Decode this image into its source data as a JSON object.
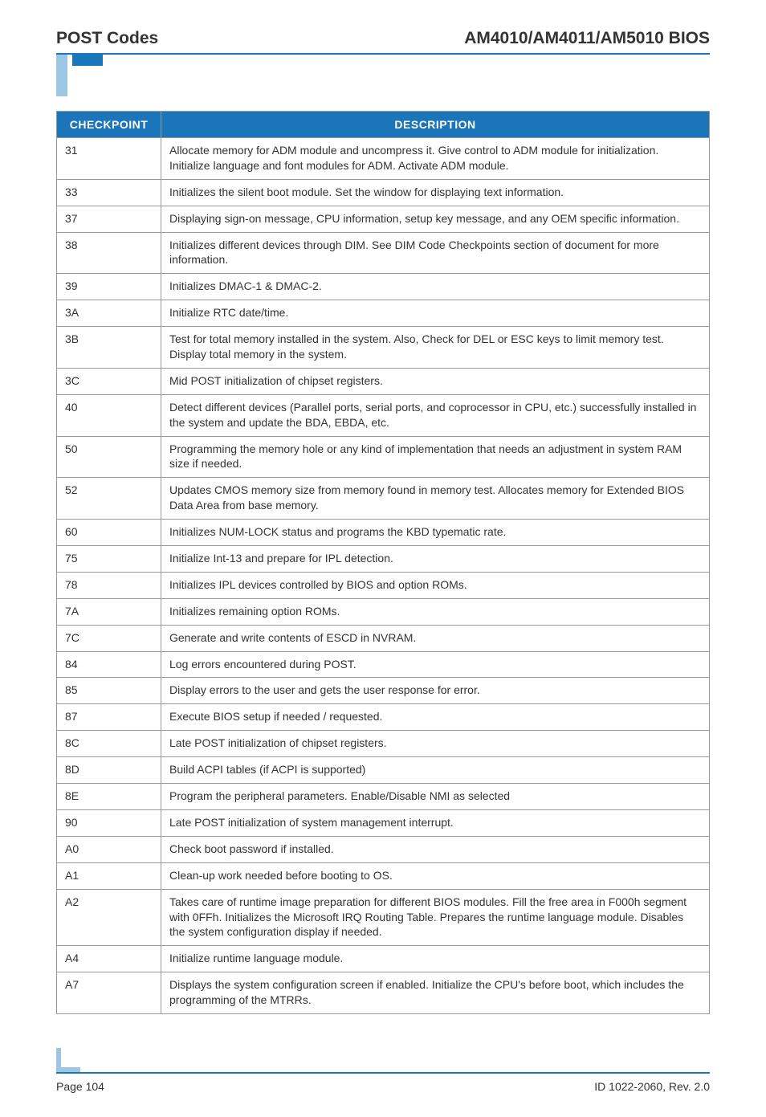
{
  "header": {
    "left": "POST Codes",
    "right": "AM4010/AM4011/AM5010 BIOS"
  },
  "colors": {
    "accent": "#1b75bb",
    "accent_light": "#9cc6e2",
    "border": "#999999",
    "text": "#333333",
    "header_text": "#ffffff",
    "background": "#ffffff"
  },
  "table": {
    "columns": [
      "CHECKPOINT",
      "DESCRIPTION"
    ],
    "rows": [
      [
        "31",
        "Allocate memory for ADM module and uncompress it. Give control to ADM module for initialization. Initialize language and font modules for ADM. Activate ADM module."
      ],
      [
        "33",
        "Initializes the silent boot module. Set the window for displaying text information."
      ],
      [
        "37",
        "Displaying sign-on message, CPU information, setup key message, and any OEM specific information."
      ],
      [
        "38",
        "Initializes different devices through DIM. See DIM Code Checkpoints section of document for more information."
      ],
      [
        "39",
        "Initializes DMAC-1 & DMAC-2."
      ],
      [
        "3A",
        "Initialize RTC date/time."
      ],
      [
        "3B",
        "Test for total memory installed in the system. Also, Check for DEL or ESC keys to limit memory test. Display total memory in the system."
      ],
      [
        "3C",
        "Mid POST initialization of chipset registers."
      ],
      [
        "40",
        "Detect different devices (Parallel ports, serial ports, and coprocessor in CPU, etc.) successfully installed in the system and update the BDA, EBDA, etc."
      ],
      [
        "50",
        "Programming the memory hole or any kind of implementation that needs an adjustment in system RAM size if needed."
      ],
      [
        "52",
        "Updates CMOS memory size from memory found in memory test. Allocates memory for Extended BIOS Data Area from base memory."
      ],
      [
        "60",
        "Initializes NUM-LOCK status and programs the KBD typematic rate."
      ],
      [
        "75",
        "Initialize Int-13 and prepare for IPL detection."
      ],
      [
        "78",
        "Initializes IPL devices controlled by BIOS and option ROMs."
      ],
      [
        "7A",
        "Initializes remaining option ROMs."
      ],
      [
        "7C",
        "Generate and write contents of ESCD in NVRAM."
      ],
      [
        "84",
        "Log errors encountered during POST."
      ],
      [
        "85",
        "Display errors to the user and gets the user response for error."
      ],
      [
        "87",
        "Execute BIOS setup if needed / requested."
      ],
      [
        "8C",
        "Late POST initialization of chipset registers."
      ],
      [
        "8D",
        "Build ACPI tables (if ACPI is supported)"
      ],
      [
        "8E",
        "Program the peripheral parameters. Enable/Disable NMI as selected"
      ],
      [
        "90",
        "Late POST initialization of system management interrupt."
      ],
      [
        "A0",
        "Check boot password if installed."
      ],
      [
        "A1",
        "Clean-up work needed before booting to OS."
      ],
      [
        "A2",
        "Takes care of runtime image preparation for different BIOS modules. Fill the free area in F000h segment with 0FFh. Initializes the Microsoft IRQ Routing Table. Prepares the runtime language module. Disables the system configuration display if needed."
      ],
      [
        "A4",
        "Initialize runtime language module."
      ],
      [
        "A7",
        "Displays the system configuration screen if enabled. Initialize the CPU's before boot, which includes the programming of the MTRRs."
      ]
    ]
  },
  "footer": {
    "left": "Page 104",
    "right": "ID 1022-2060, Rev. 2.0"
  }
}
